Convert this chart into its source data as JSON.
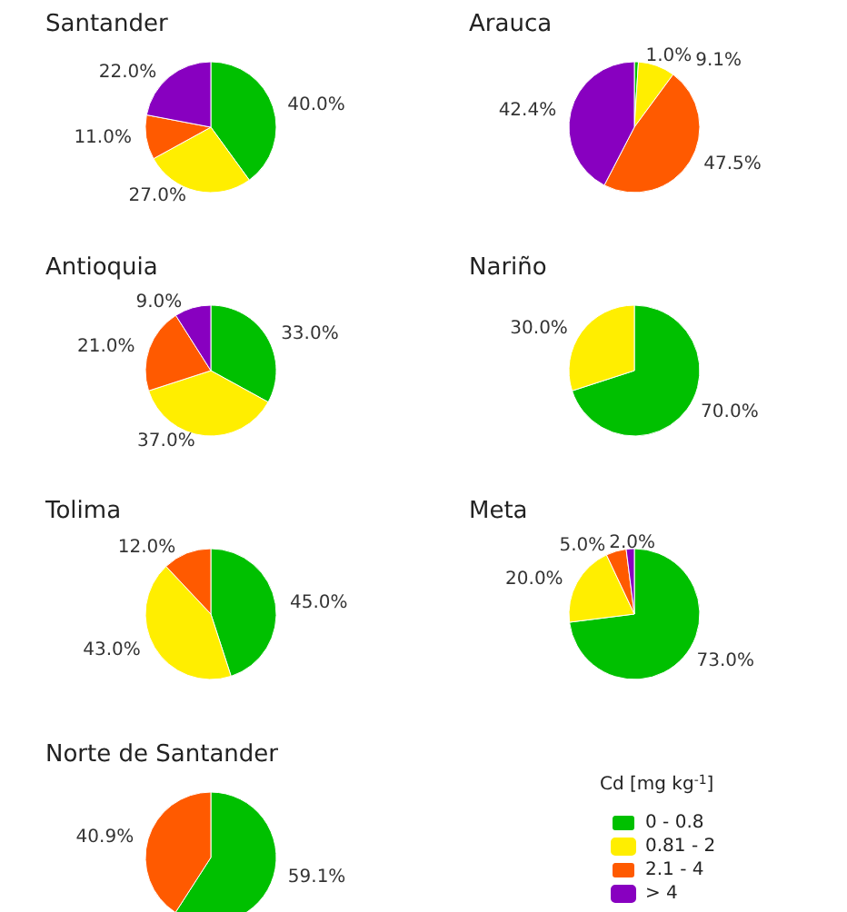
{
  "chart_data": [
    {
      "type": "pie",
      "title": "Santander",
      "categories": [
        null,
        null,
        null,
        null
      ],
      "values": [
        40.0,
        27.0,
        11.0,
        22.0
      ],
      "colors": [
        "#00c000",
        "#ffee00",
        "#ff5a00",
        "#8800c0"
      ],
      "value_labels": [
        "40.0%",
        "27.0%",
        "11.0%",
        "22.0%"
      ]
    },
    {
      "type": "pie",
      "title": "Arauca",
      "categories": [
        null,
        null,
        null,
        null
      ],
      "values": [
        1.0,
        9.1,
        47.5,
        42.4
      ],
      "colors": [
        "#00c000",
        "#ffee00",
        "#ff5a00",
        "#8800c0"
      ],
      "value_labels": [
        "1.0%",
        "9.1%",
        "47.5%",
        "42.4%"
      ]
    },
    {
      "type": "pie",
      "title": "Antioquia",
      "categories": [
        null,
        null,
        null,
        null
      ],
      "values": [
        33.0,
        37.0,
        21.0,
        9.0
      ],
      "colors": [
        "#00c000",
        "#ffee00",
        "#ff5a00",
        "#8800c0"
      ],
      "value_labels": [
        "33.0%",
        "37.0%",
        "21.0%",
        "9.0%"
      ]
    },
    {
      "type": "pie",
      "title": "Nariño",
      "categories": [
        null,
        null
      ],
      "values": [
        70.0,
        30.0
      ],
      "colors": [
        "#00c000",
        "#ffee00"
      ],
      "value_labels": [
        "70.0%",
        "30.0%"
      ]
    },
    {
      "type": "pie",
      "title": "Tolima",
      "categories": [
        null,
        null,
        null
      ],
      "values": [
        45.0,
        43.0,
        12.0
      ],
      "colors": [
        "#00c000",
        "#ffee00",
        "#ff5a00"
      ],
      "value_labels": [
        "45.0%",
        "43.0%",
        "12.0%"
      ]
    },
    {
      "type": "pie",
      "title": "Meta",
      "categories": [
        null,
        null,
        null,
        null
      ],
      "values": [
        73.0,
        20.0,
        5.0,
        2.0
      ],
      "colors": [
        "#00c000",
        "#ffee00",
        "#ff5a00",
        "#8800c0"
      ],
      "value_labels": [
        "73.0%",
        "20.0%",
        "5.0%",
        "2.0%"
      ]
    },
    {
      "type": "pie",
      "title": "Norte de Santander",
      "categories": [
        "0 - 0.8",
        "0.81 - 2",
        "2.1 - 4",
        "> 4"
      ],
      "values": [
        59.1,
        0,
        40.9,
        0
      ],
      "colors": [
        "#00c000",
        "#ffee00",
        "#ff5a00",
        "#8800c0"
      ],
      "value_labels": [
        "59.1%",
        null,
        "40.9%",
        null
      ],
      "legend": "right",
      "legend_title": "Cd [mg kg$^{-1}$]"
    }
  ]
}
